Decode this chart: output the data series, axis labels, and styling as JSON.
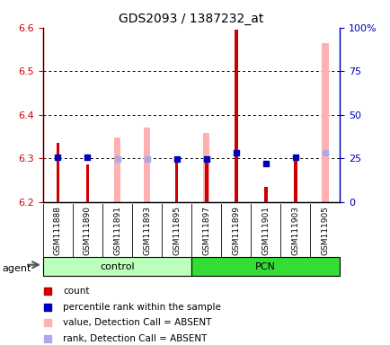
{
  "title": "GDS2093 / 1387232_at",
  "samples": [
    "GSM111888",
    "GSM111890",
    "GSM111891",
    "GSM111893",
    "GSM111895",
    "GSM111897",
    "GSM111899",
    "GSM111901",
    "GSM111903",
    "GSM111905"
  ],
  "red_values": [
    6.335,
    6.285,
    null,
    null,
    6.295,
    6.295,
    6.595,
    6.235,
    6.305,
    null
  ],
  "blue_values": [
    6.302,
    6.302,
    null,
    null,
    6.298,
    6.298,
    6.312,
    6.288,
    6.302,
    null
  ],
  "pink_values": [
    null,
    null,
    6.348,
    6.37,
    null,
    6.358,
    null,
    null,
    null,
    6.565
  ],
  "light_blue_values": [
    null,
    null,
    6.298,
    6.298,
    null,
    6.298,
    null,
    null,
    null,
    6.312
  ],
  "ylim": [
    6.2,
    6.6
  ],
  "yticks": [
    6.2,
    6.3,
    6.4,
    6.5,
    6.6
  ],
  "right_ylabels": [
    "0",
    "25",
    "50",
    "75",
    "100%"
  ],
  "red_color": "#cc0000",
  "blue_color": "#0000bb",
  "pink_color": "#ffb0b0",
  "light_blue_color": "#aaaaee",
  "control_light_color": "#bbffbb",
  "pcn_color": "#33dd33",
  "group_label_control": "control",
  "group_label_pcn": "PCN",
  "agent_label": "agent",
  "left_axis_color": "#cc0000",
  "right_axis_color": "#0000bb",
  "sample_bg_color": "#cccccc",
  "legend_items": [
    "count",
    "percentile rank within the sample",
    "value, Detection Call = ABSENT",
    "rank, Detection Call = ABSENT"
  ],
  "legend_colors": [
    "#cc0000",
    "#0000bb",
    "#ffb0b0",
    "#aaaaee"
  ]
}
